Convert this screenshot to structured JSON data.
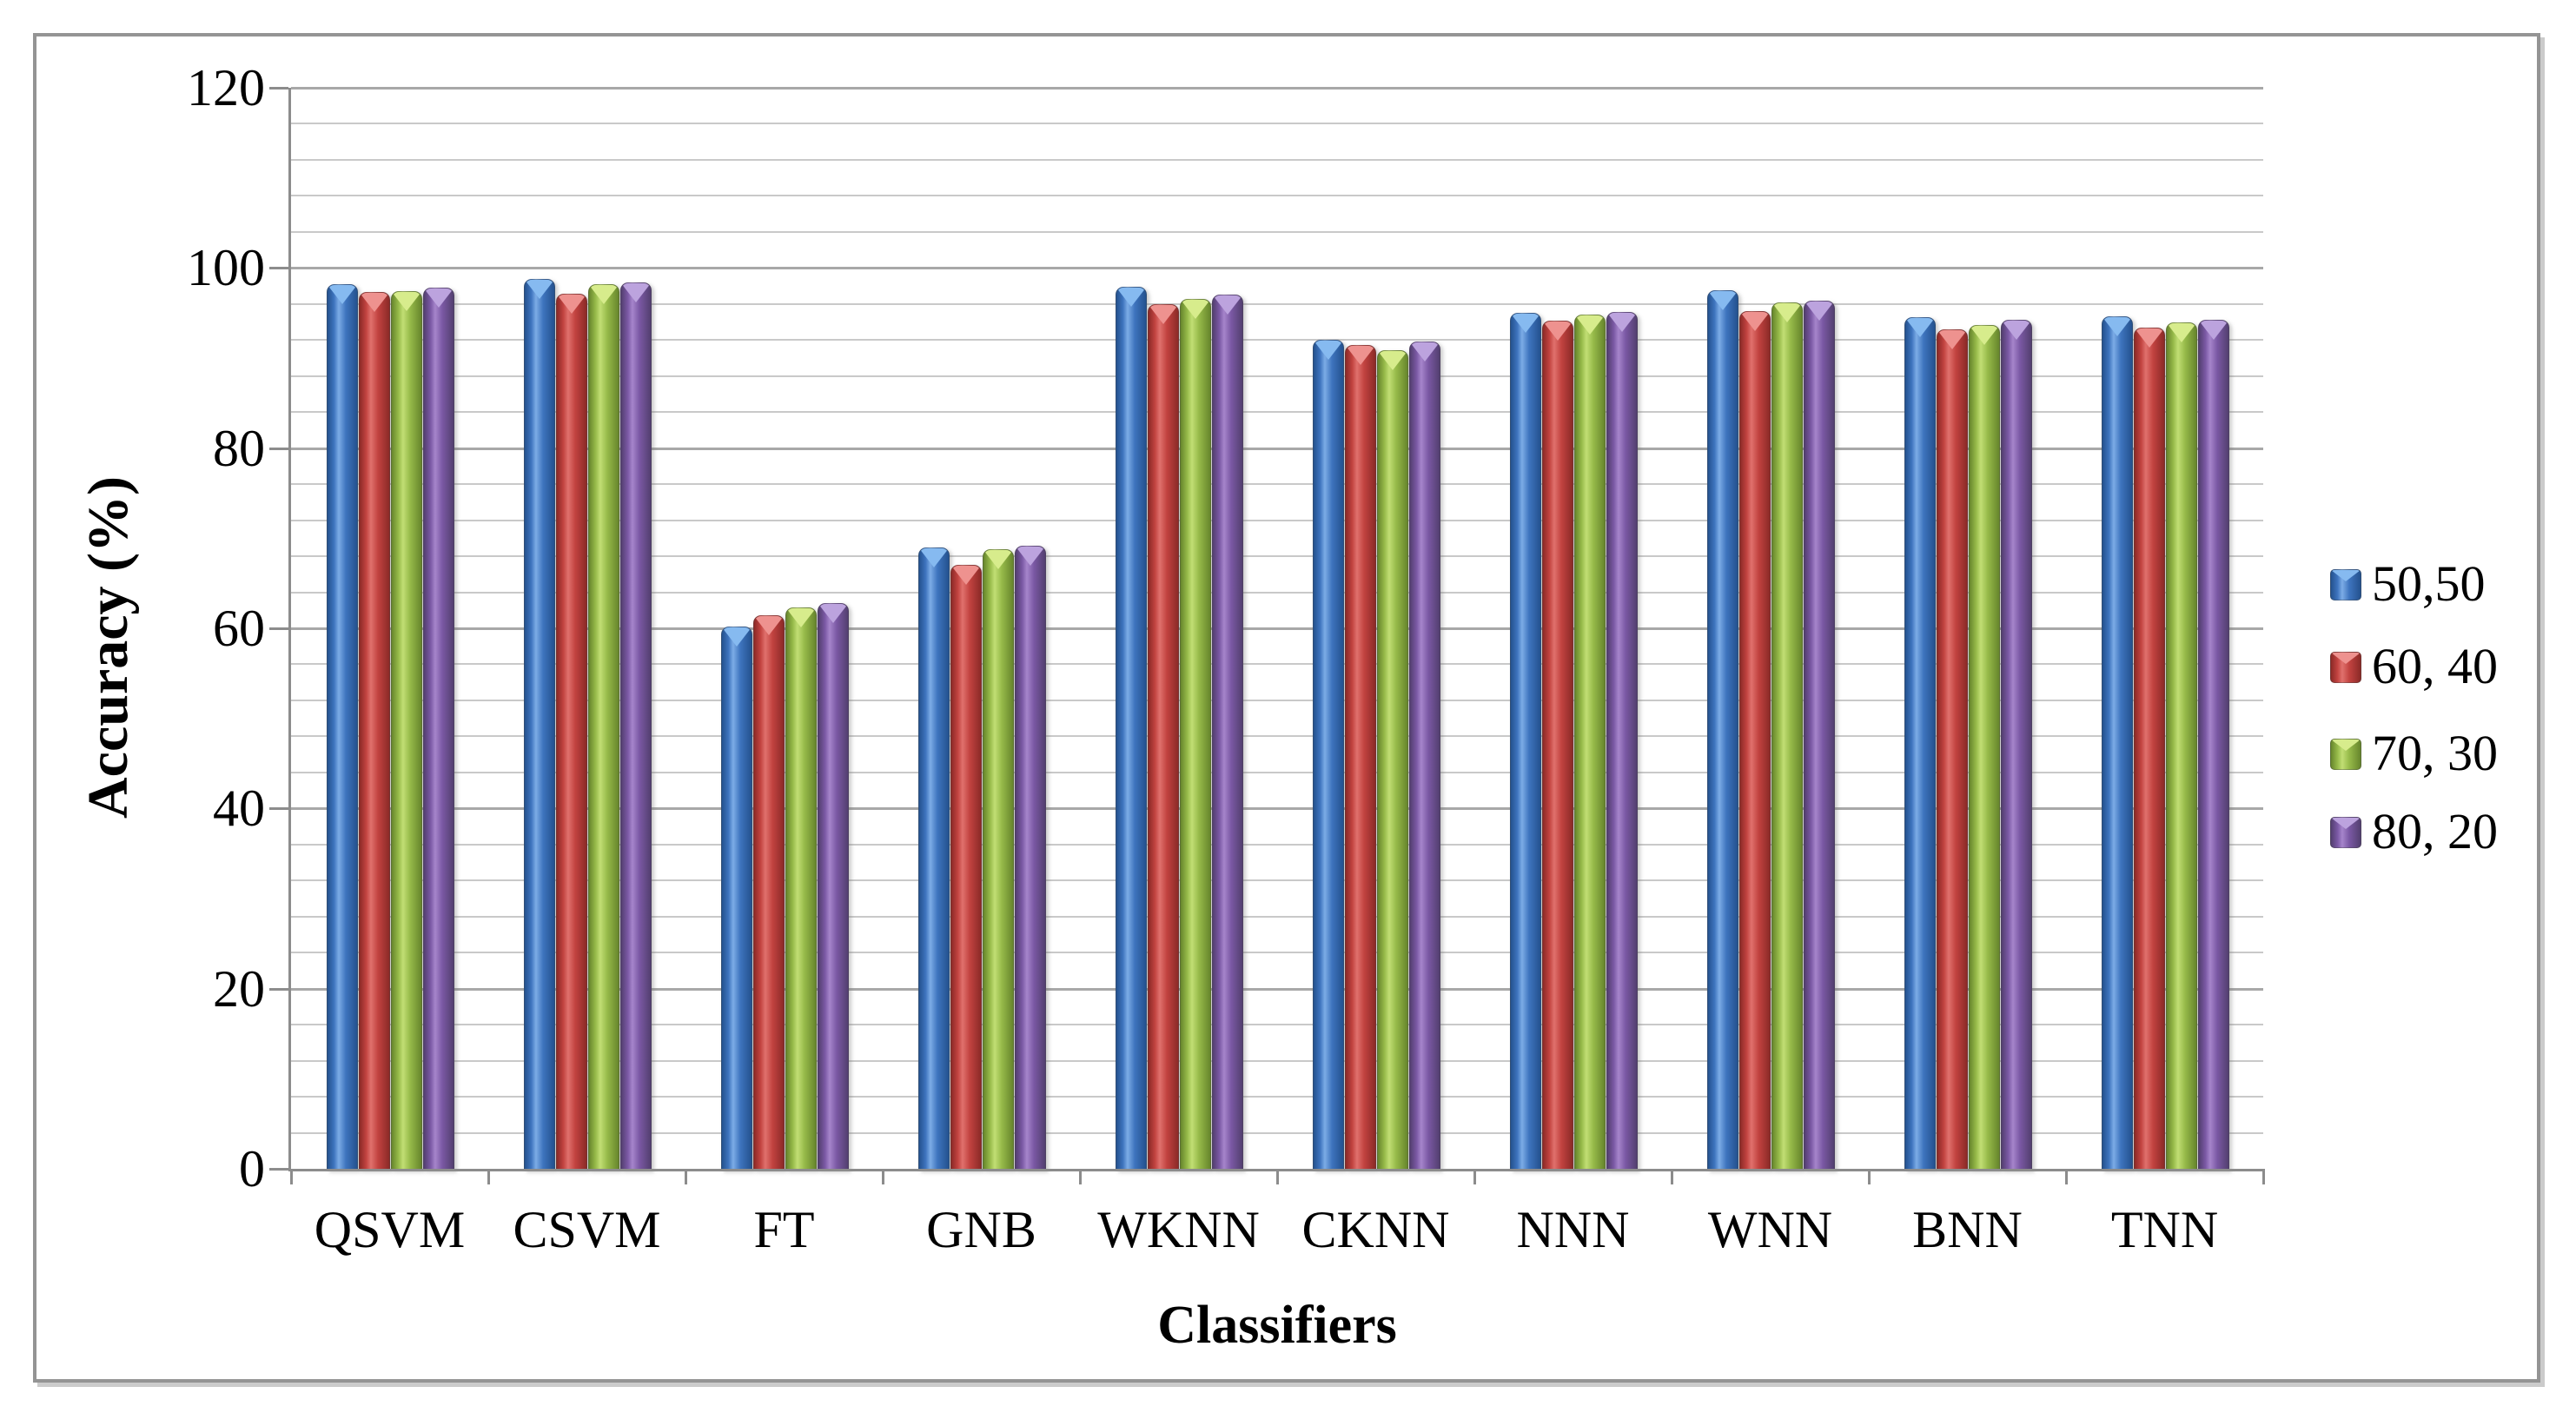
{
  "chart_data": {
    "type": "bar",
    "title": "",
    "xlabel": "Classifiers",
    "ylabel": "Accuracy (%)",
    "categories": [
      "QSVM",
      "CSVM",
      "FT",
      "GNB",
      "WKNN",
      "CKNN",
      "NNN",
      "WNN",
      "BNN",
      "TNN"
    ],
    "series": [
      {
        "name": "50,50",
        "color": "#3E74BE",
        "dark": "#24528F",
        "light": "#7CACE6",
        "cap": "#86BAF0",
        "values": [
          98.2,
          98.8,
          60.2,
          69.0,
          97.9,
          92.0,
          95.0,
          97.5,
          94.5,
          94.6
        ]
      },
      {
        "name": "60, 40",
        "color": "#C24340",
        "dark": "#8C2A27",
        "light": "#E0716D",
        "cap": "#EE928F",
        "values": [
          97.3,
          97.1,
          61.4,
          67.0,
          96.0,
          91.4,
          94.1,
          95.2,
          93.2,
          93.4
        ]
      },
      {
        "name": "70, 30",
        "color": "#96BA49",
        "dark": "#67862C",
        "light": "#C1DE74",
        "cap": "#D7EC8C",
        "values": [
          97.4,
          98.2,
          62.3,
          68.8,
          96.6,
          90.9,
          94.8,
          96.2,
          93.7,
          94.0
        ]
      },
      {
        "name": "80, 20",
        "color": "#7A58A4",
        "dark": "#533F70",
        "light": "#A685CB",
        "cap": "#BCA3DE",
        "values": [
          97.8,
          98.4,
          62.8,
          69.2,
          97.0,
          91.8,
          95.1,
          96.4,
          94.2,
          94.2
        ]
      }
    ],
    "ylim": [
      0,
      120
    ],
    "yticks": [
      0,
      20,
      40,
      60,
      80,
      100,
      120
    ],
    "minor_step": 4,
    "grid": true,
    "legend_position": "right"
  }
}
